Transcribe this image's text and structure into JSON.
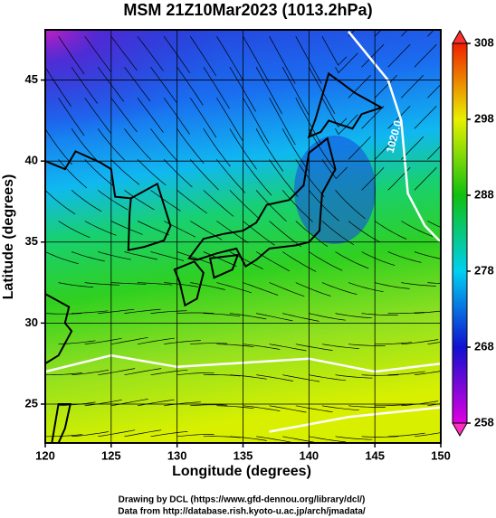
{
  "chart_data": {
    "type": "map",
    "title": "MSM 21Z10Mar2023 (1013.2hPa)",
    "xlabel": "Longitude (degrees)",
    "ylabel": "Latitude  (degrees)",
    "xlim": [
      120,
      150
    ],
    "xticks": [
      120,
      125,
      130,
      135,
      140,
      145,
      150
    ],
    "ylim": [
      22.6,
      48.1
    ],
    "yticks": [
      25,
      30,
      35,
      40,
      45
    ],
    "grid": true,
    "colorbar": {
      "lim": [
        258,
        308
      ],
      "ticks": [
        258,
        268,
        278,
        288,
        298,
        308
      ]
    },
    "contour_labels": [
      "1020.0"
    ],
    "credits": [
      "Drawing by DCL (https://www.gfd-dennou.org/library/dcl/)",
      "Data from http://database.rish.kyoto-u.ac.jp/arch/jmadata/"
    ]
  }
}
